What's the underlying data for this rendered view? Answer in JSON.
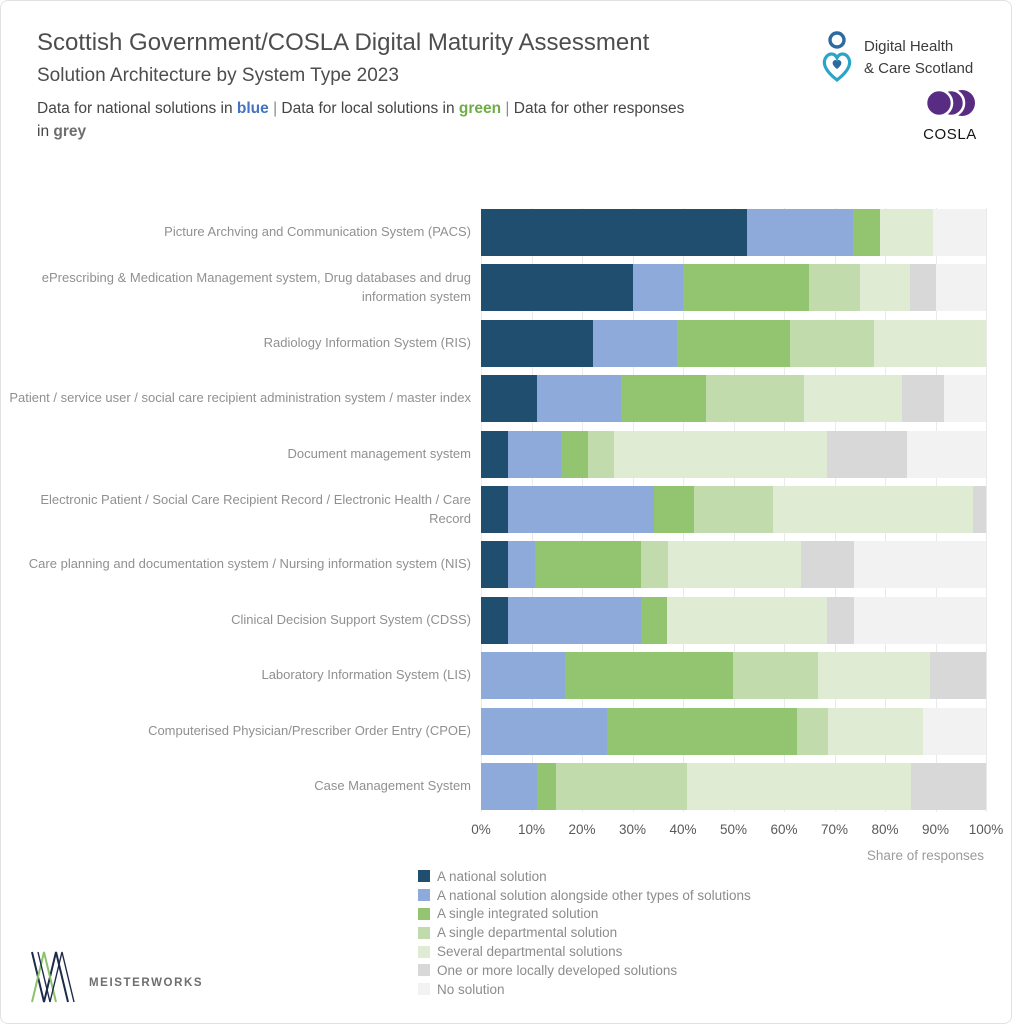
{
  "header": {
    "title": "Scottish Government/COSLA Digital Maturity Assessment",
    "subtitle": "Solution Architecture by System Type 2023",
    "note": {
      "s1": "Data for national solutions in ",
      "blue": "blue",
      "sep": " | ",
      "s2": "Data for local solutions in ",
      "green": "green",
      "sep2": " | ",
      "s3": "Data for other responses",
      "s4": "in ",
      "grey": "grey"
    }
  },
  "logos": {
    "dhcs": {
      "line1": "Digital Health",
      "line2": "& Care Scotland",
      "icon": "person-heart-icon"
    },
    "cosla": {
      "label": "COSLA",
      "icon": "three-circles-icon",
      "brand_purple": "#582c83"
    }
  },
  "footer": {
    "brand": "MEISTERWORKS",
    "icon": "mw-zigzag-icon"
  },
  "chart_data": {
    "type": "bar",
    "orientation": "horizontal-stacked",
    "title": "Solution Architecture by System Type 2023",
    "xlabel": "Share of responses",
    "ylabel": "",
    "xlim": [
      0,
      100
    ],
    "x_ticks": [
      "0%",
      "10%",
      "20%",
      "30%",
      "40%",
      "50%",
      "60%",
      "70%",
      "80%",
      "90%",
      "100%"
    ],
    "grid": true,
    "legend_position": "bottom",
    "units": "percent of responses",
    "categories": [
      "Picture Archving and Communication System (PACS)",
      "ePrescribing & Medication Management system, Drug databases and drug information system",
      "Radiology Information System (RIS)",
      "Patient / service user / social care recipient administration system / master index",
      "Document management system",
      "Electronic Patient / Social Care Recipient Record / Electronic Health / Care Record",
      "Care planning and documentation system / Nursing information system (NIS)",
      "Clinical Decision Support System (CDSS)",
      "Laboratory Information System (LIS)",
      "Computerised Physician/Prescriber Order Entry (CPOE)",
      "Case Management System"
    ],
    "series": [
      {
        "name": "A national solution",
        "color": "#204e6e",
        "values": [
          52.6,
          30.0,
          22.2,
          11.1,
          5.3,
          5.3,
          5.3,
          5.3,
          0,
          0,
          0
        ]
      },
      {
        "name": "A national solution alongside other types of solutions",
        "color": "#8eaadb",
        "values": [
          21.1,
          10.0,
          16.7,
          16.7,
          10.5,
          28.9,
          5.3,
          26.3,
          16.7,
          25.0,
          11.1
        ]
      },
      {
        "name": "A single integrated solution",
        "color": "#93c571",
        "values": [
          5.3,
          25.0,
          22.2,
          16.7,
          5.3,
          7.9,
          21.1,
          5.3,
          33.3,
          37.5,
          3.7
        ]
      },
      {
        "name": "A single departmental solution",
        "color": "#c2dbad",
        "values": [
          0,
          10.0,
          16.7,
          19.4,
          5.3,
          15.8,
          5.3,
          0,
          16.7,
          6.3,
          25.9
        ]
      },
      {
        "name": "Several departmental solutions",
        "color": "#dfebd3",
        "values": [
          10.5,
          10.0,
          22.2,
          19.4,
          42.1,
          39.5,
          26.3,
          31.6,
          22.2,
          18.7,
          44.4
        ]
      },
      {
        "name": "One or more locally developed solutions",
        "color": "#d8d8d8",
        "values": [
          0,
          5.0,
          0,
          8.3,
          15.8,
          2.6,
          10.5,
          5.3,
          11.1,
          0,
          14.9
        ]
      },
      {
        "name": "No solution",
        "color": "#f2f2f2",
        "values": [
          10.5,
          10.0,
          0,
          8.4,
          15.7,
          0,
          26.2,
          26.2,
          0,
          12.5,
          0
        ]
      }
    ]
  }
}
